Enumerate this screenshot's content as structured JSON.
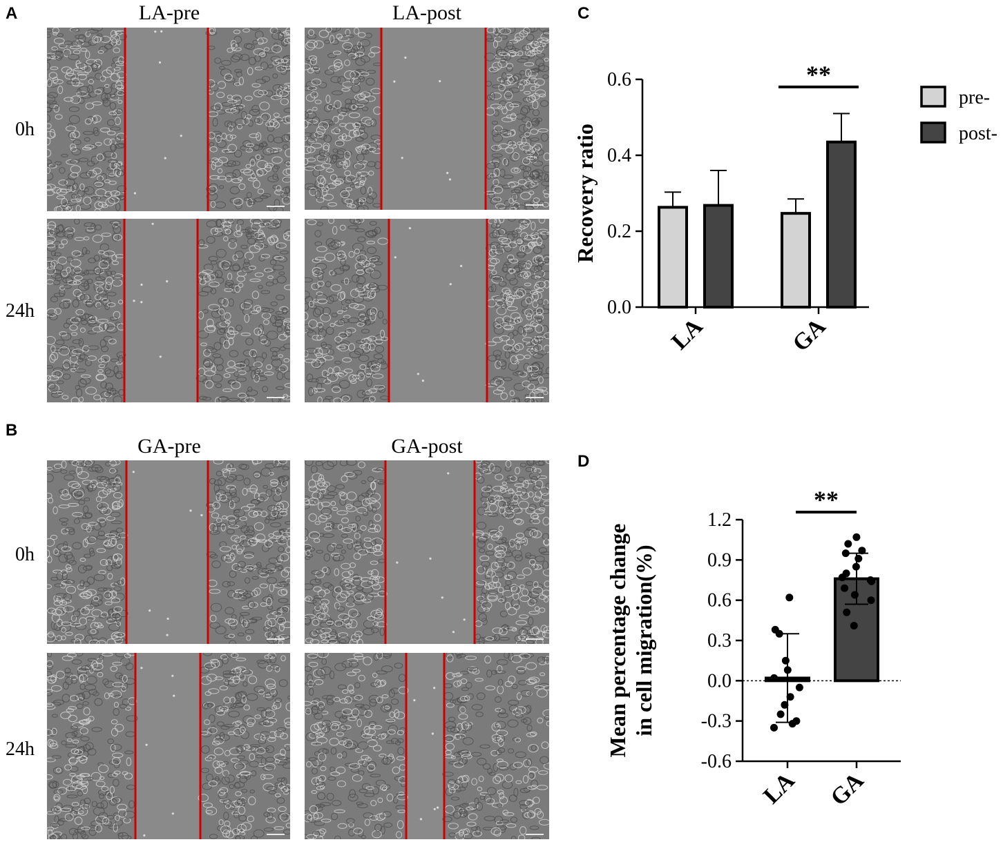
{
  "panels": {
    "A": {
      "letter": "A",
      "columns": [
        "LA-pre",
        "LA-post"
      ],
      "rows": [
        "0h",
        "24h"
      ]
    },
    "B": {
      "letter": "B",
      "columns": [
        "GA-pre",
        "GA-post"
      ],
      "rows": [
        "0h",
        "24h"
      ]
    },
    "C": {
      "letter": "C"
    },
    "D": {
      "letter": "D"
    }
  },
  "colors": {
    "wound_line": "#d00000",
    "pre_bar": "#d3d3d3",
    "post_bar": "#444444",
    "micro_bg": "#7d7d7d"
  },
  "chart_data": [
    {
      "type": "bar",
      "panel": "C",
      "ylabel": "Recovery ratio",
      "categories": [
        "LA",
        "GA"
      ],
      "ylim": [
        0,
        0.6
      ],
      "yticks": [
        0.0,
        0.2,
        0.4,
        0.6
      ],
      "ytick_labels": [
        "0.0",
        "0.2",
        "0.4",
        "0.6"
      ],
      "series": [
        {
          "name": "pre-",
          "values": [
            0.263,
            0.247
          ],
          "errors": [
            0.04,
            0.038
          ]
        },
        {
          "name": "post-",
          "values": [
            0.268,
            0.435
          ],
          "errors": [
            0.092,
            0.075
          ]
        }
      ],
      "significance": [
        {
          "category": "GA",
          "label": "**"
        }
      ],
      "legend": "right",
      "grid": false
    },
    {
      "type": "bar",
      "panel": "D",
      "ylabel": "Mean percentage change in cell migration(%)",
      "ylabel_lines": [
        "Mean percentage change",
        "in cell migration(%)"
      ],
      "categories": [
        "LA",
        "GA"
      ],
      "ylim": [
        -0.6,
        1.2
      ],
      "yticks": [
        -0.6,
        -0.3,
        0.0,
        0.3,
        0.6,
        0.9,
        1.2
      ],
      "ytick_labels": [
        "-0.6",
        "-0.3",
        "0.0",
        "0.3",
        "0.6",
        "0.9",
        "1.2"
      ],
      "values": [
        0.02,
        0.76
      ],
      "errors": [
        0.33,
        0.19
      ],
      "points": [
        [
          0.62,
          0.38,
          0.35,
          0.15,
          0.08,
          0.02,
          -0.05,
          -0.12,
          -0.18,
          -0.25,
          -0.3,
          -0.32,
          -0.35
        ],
        [
          1.07,
          1.02,
          0.97,
          0.95,
          0.91,
          0.85,
          0.8,
          0.77,
          0.75,
          0.74,
          0.69,
          0.64,
          0.6,
          0.51,
          0.41
        ]
      ],
      "significance": [
        {
          "between": [
            "LA",
            "GA"
          ],
          "label": "**"
        }
      ],
      "grid": false
    }
  ]
}
